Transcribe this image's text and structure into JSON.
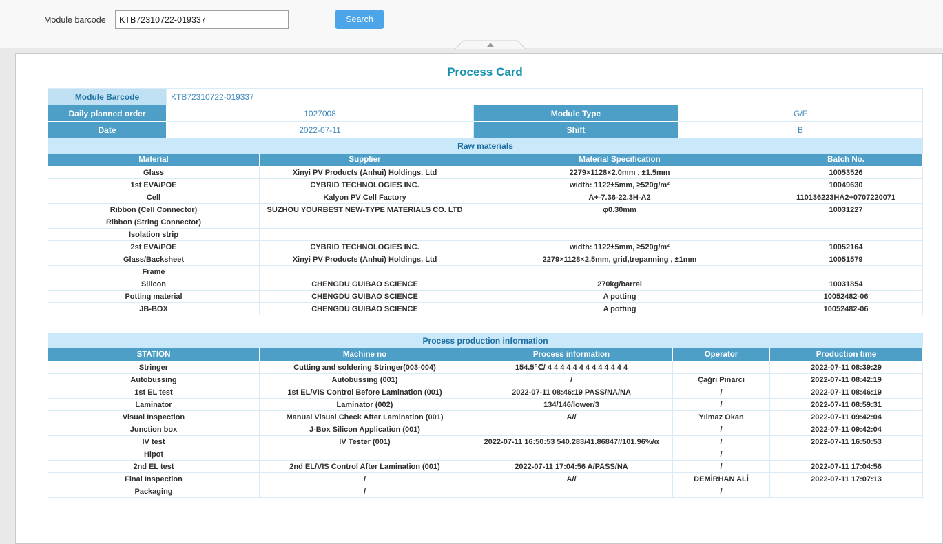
{
  "topbar": {
    "label": "Module barcode",
    "input_value": "KTB72310722-019337",
    "search_label": "Search"
  },
  "card": {
    "title": "Process Card",
    "info": {
      "module_barcode_label": "Module Barcode",
      "module_barcode_value": "KTB72310722-019337",
      "rows": [
        {
          "label": "Daily planned order",
          "value": "1027008",
          "label2": "Module Type",
          "value2": "G/F"
        },
        {
          "label": "Date",
          "value": "2022-07-11",
          "label2": "Shift",
          "value2": "B"
        }
      ]
    },
    "raw_materials": {
      "section_title": "Raw materials",
      "headers": [
        "Material",
        "Supplier",
        "Material Specification",
        "Batch No."
      ],
      "rows": [
        [
          "Glass",
          "Xinyi PV Products (Anhui) Holdings. Ltd",
          "2279×1128×2.0mm , ±1.5mm",
          "10053526"
        ],
        [
          "1st EVA/POE",
          "CYBRID TECHNOLOGIES INC.",
          "width: 1122±5mm, ≥520g/m²",
          "10049630"
        ],
        [
          "Cell",
          "Kalyon PV  Cell Factory",
          "A+-7.36-22.3H-A2",
          "110136223HA2+0707220071"
        ],
        [
          "Ribbon (Cell Connector)",
          "SUZHOU YOURBEST NEW-TYPE MATERIALS CO. LTD",
          "φ0.30mm",
          "10031227"
        ],
        [
          "Ribbon (String Connector)",
          "",
          "",
          ""
        ],
        [
          "Isolation strip",
          "",
          "",
          ""
        ],
        [
          "2st EVA/POE",
          "CYBRID TECHNOLOGIES INC.",
          "width: 1122±5mm, ≥520g/m²",
          "10052164"
        ],
        [
          "Glass/Backsheet",
          "Xinyi PV Products (Anhui) Holdings. Ltd",
          "2279×1128×2.5mm, grid,trepanning , ±1mm",
          "10051579"
        ],
        [
          "Frame",
          "",
          "",
          ""
        ],
        [
          "Silicon",
          "CHENGDU GUIBAO SCIENCE",
          "270kg/barrel",
          "10031854"
        ],
        [
          "Potting material",
          "CHENGDU GUIBAO SCIENCE",
          "A potting",
          "10052482-06"
        ],
        [
          "JB-BOX",
          "CHENGDU GUIBAO SCIENCE",
          "A potting",
          "10052482-06"
        ]
      ]
    },
    "process": {
      "section_title": "Process production information",
      "headers": [
        "STATION",
        "Machine no",
        "Process information",
        "Operator",
        "Production time"
      ],
      "rows": [
        [
          "Stringer",
          "Cutting and soldering Stringer(003-004)",
          "154.5℃/ 4 4 4 4 4 4 4 4 4 4 4 4 4",
          "",
          "2022-07-11 08:39:29"
        ],
        [
          "Autobussing",
          "Autobussing (001)",
          "/",
          "Çağrı Pınarcı",
          "2022-07-11 08:42:19"
        ],
        [
          "1st EL test",
          "1st EL/VIS Control Before Lamination (001)",
          "2022-07-11 08:46:19 PASS/NA/NA",
          "/",
          "2022-07-11 08:46:19"
        ],
        [
          "Laminator",
          "Laminator (002)",
          "134/146/lower/3",
          "/",
          "2022-07-11 08:59:31"
        ],
        [
          "Visual Inspection",
          "Manual Visual Check After Lamination (001)",
          "A//",
          "Yılmaz Okan",
          "2022-07-11 09:42:04"
        ],
        [
          "Junction box",
          "J-Box Silicon Application (001)",
          "",
          "/",
          "2022-07-11 09:42:04"
        ],
        [
          "IV test",
          "IV Tester (001)",
          "2022-07-11 16:50:53 540.283/41.86847//101.96%/α",
          "/",
          "2022-07-11 16:50:53"
        ],
        [
          "Hipot",
          "",
          "",
          "/",
          ""
        ],
        [
          "2nd EL test",
          "2nd EL/VIS Control After Lamination (001)",
          "2022-07-11 17:04:56 A/PASS/NA",
          "/",
          "2022-07-11 17:04:56"
        ],
        [
          "Final Inspection",
          "/",
          "A//",
          "DEMİRHAN ALİ",
          "2022-07-11 17:07:13"
        ],
        [
          "Packaging",
          "/",
          "",
          "/",
          ""
        ]
      ]
    }
  }
}
